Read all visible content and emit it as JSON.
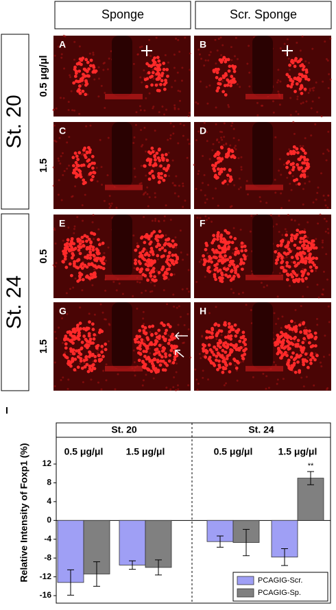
{
  "figure": {
    "column_headers": [
      "Sponge",
      "Scr. Sponge"
    ],
    "row_headers": [
      "St. 20",
      "St. 24"
    ],
    "doses": [
      "0.5 μg/μl",
      "1.5",
      "0.5",
      "1.5"
    ],
    "panel_letters": [
      "A",
      "B",
      "C",
      "D",
      "E",
      "F",
      "G",
      "H"
    ],
    "chart_letter": "I"
  },
  "chart_data": {
    "type": "bar",
    "ylabel": "Relative Intensity of Foxp1 (%)",
    "groups": [
      "St. 20",
      "St. 24"
    ],
    "categories": [
      "0.5 μg/μl",
      "1.5 μg/μl",
      "0.5 μg/μl",
      "1.5 μg/μl"
    ],
    "series": [
      {
        "name": "PCAGIG-Scr.",
        "color": "#9f9ff5",
        "values": [
          -13.2,
          -9.5,
          -4.5,
          -7.8
        ],
        "errors": [
          2.7,
          0.9,
          1.2,
          1.8
        ]
      },
      {
        "name": "PCAGIG-Sp.",
        "color": "#808080",
        "values": [
          -11.4,
          -10,
          -4.7,
          9
        ],
        "errors": [
          2.6,
          1.6,
          2.8,
          1.4
        ]
      }
    ],
    "annotation": "**",
    "ylim": [
      -17.6,
      17.4
    ],
    "yticks": [
      12,
      8,
      4,
      0,
      -4,
      -8,
      -12,
      -16
    ],
    "legend": "lower right"
  }
}
